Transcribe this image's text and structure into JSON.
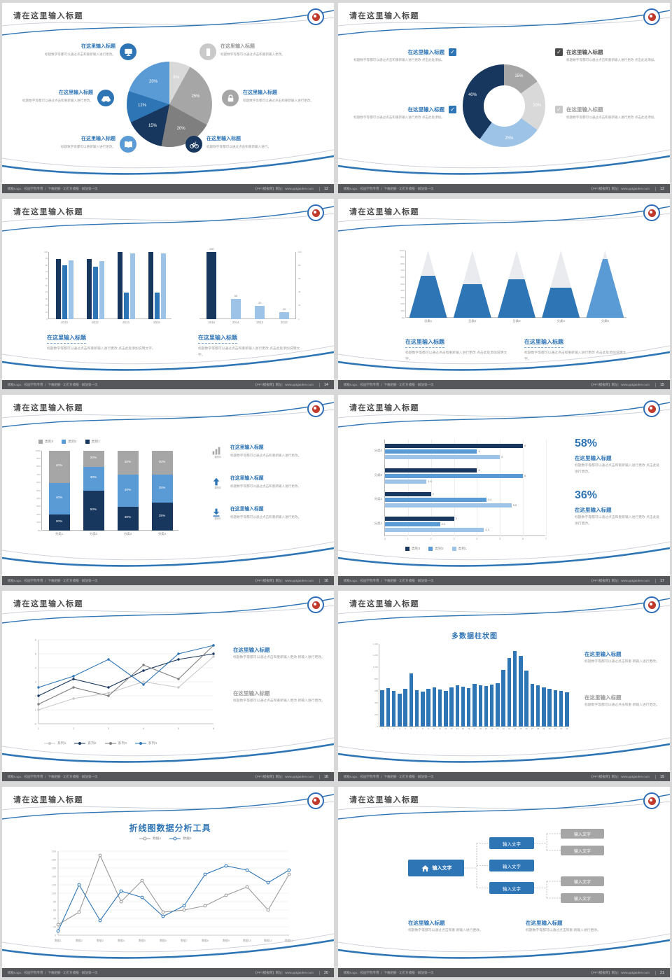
{
  "colors": {
    "dark": "#17375e",
    "blue": "#2e75b6",
    "mid": "#5b9bd5",
    "light": "#9dc3e6",
    "pale": "#bdd7ee",
    "gray": "#a6a6a6",
    "lightgray": "#d9d9d9",
    "midgray": "#7f7f7f",
    "silver": "#c9c9c9",
    "heading": "#2e74b5",
    "graytext": "#9a9a9a",
    "darktext": "#4d4d4d"
  },
  "slide": {
    "title": "请在这里输入标题",
    "footer_left": "模板Logo：校园学院专用 丨 下载相册 · 幻灯片模板 · 解放第一页",
    "footer_right": "【PPT模板网】网址：www.pptgarden.com"
  },
  "slides": [
    {
      "page": "12",
      "type": "pie-icons",
      "chart": {
        "type": "pie",
        "values": [
          8,
          25,
          20,
          15,
          12,
          20
        ],
        "labels": [
          "8%",
          "25%",
          "20%",
          "15%",
          "12%",
          "20%"
        ],
        "colors": [
          "lightgray",
          "gray",
          "midgray",
          "dark",
          "blue",
          "mid"
        ]
      },
      "left_items": [
        {
          "icon": "monitor",
          "circle": "blue",
          "heading": "在这里输入标题",
          "hcolor": "heading",
          "body": "标题数字等都可以通过点击和重新输入进行更改。"
        },
        {
          "icon": "car",
          "circle": "blue",
          "heading": "在这里输入标题",
          "hcolor": "heading",
          "body": "标题数字等都可以通过点击和重新输入进行更改。"
        },
        {
          "icon": "book",
          "circle": "mid",
          "heading": "在这里输入标题",
          "hcolor": "heading",
          "body": "标题数字等都可以重新输入进行更改。"
        }
      ],
      "right_items": [
        {
          "icon": "phone",
          "circle": "silver",
          "heading": "在这里输入标题",
          "hcolor": "graytext",
          "body": "标题数字等都可以通过点击和重新输入更改。"
        },
        {
          "icon": "lock",
          "circle": "gray",
          "heading": "在这里输入标题",
          "hcolor": "heading",
          "body": "标题数字等都可以通过点击和重新输入进行更改。"
        },
        {
          "icon": "bicycle",
          "circle": "dark",
          "heading": "在这里输入标题",
          "hcolor": "heading",
          "body": "标题数字等都可以通过点击和重新输入进行。"
        }
      ]
    },
    {
      "page": "13",
      "type": "donut-checks",
      "chart": {
        "type": "pie",
        "values": [
          15,
          20,
          25,
          40
        ],
        "labels": [
          "15%",
          "20%",
          "25%",
          "40%"
        ],
        "colors": [
          "gray",
          "lightgray",
          "light",
          "dark"
        ]
      },
      "left_items": [
        {
          "check": "blue",
          "heading": "在这里输入标题",
          "hcolor": "heading",
          "body": "标题数字等都可以通过点击和重新输入进行更改 点击此处添加。"
        },
        {
          "check": "blue",
          "heading": "在这里输入标题",
          "hcolor": "heading",
          "body": "标题数字等都可以通过点击和重新输入进行更改 点击此处添加。"
        }
      ],
      "right_items": [
        {
          "check": "darktext",
          "heading": "在这里输入标题",
          "hcolor": "darktext",
          "body": "标题数字等都可以通过点击和重新输入进行更改 点击此处添加。"
        },
        {
          "check": "silver",
          "heading": "在这里输入标题",
          "hcolor": "graytext",
          "body": "标题数字等都可以通过点击和重新输入进行更改 点击此处添加。"
        }
      ]
    },
    {
      "page": "14",
      "type": "two-bars",
      "left_chart": {
        "type": "bar",
        "categories": [
          "2010",
          "2012",
          "2014",
          "2016"
        ],
        "ymax": 100,
        "yticks": [
          "0",
          "10",
          "20",
          "30",
          "40",
          "50",
          "60",
          "70",
          "80",
          "90",
          "100"
        ],
        "series": [
          {
            "color": "dark",
            "values": [
              90,
              90,
              100,
              100
            ]
          },
          {
            "color": "blue",
            "values": [
              80,
              78,
              40,
              40
            ]
          },
          {
            "color": "light",
            "values": [
              88,
              86,
              98,
              98
            ]
          }
        ]
      },
      "right_chart": {
        "type": "bar",
        "categories": [
          "2016",
          "2014",
          "2012",
          "2010"
        ],
        "ymax": 100,
        "yticks": [
          "0",
          "20",
          "40",
          "60",
          "80",
          "100"
        ],
        "values": [
          100,
          30,
          20,
          10
        ],
        "bar_colors": [
          "dark",
          "light",
          "light",
          "light"
        ],
        "labels": [
          "100",
          "30",
          "20",
          "10"
        ]
      },
      "texts": [
        {
          "heading": "在这里输入标题",
          "body": "标题数字等都可以通过点击和重新输入进行更改 点击此处添加说明文字。"
        },
        {
          "heading": "在这里输入标题",
          "body": "标题数字等都可以通过点击和重新输入进行更改 点击此处添加说明文字。"
        }
      ]
    },
    {
      "page": "15",
      "type": "pyramids",
      "chart": {
        "type": "bar",
        "categories": [
          "分类1",
          "分类2",
          "分类3",
          "分类4",
          "分类5"
        ],
        "fill_pct": [
          62,
          50,
          57,
          45,
          88
        ],
        "colors": [
          "blue",
          "blue",
          "blue",
          "blue",
          "mid"
        ],
        "yticks": [
          "0%",
          "10%",
          "20%",
          "30%",
          "40%",
          "50%",
          "60%",
          "70%",
          "80%",
          "90%",
          "100%"
        ]
      },
      "texts": [
        {
          "heading": "在这里输入标题",
          "body": "标题数字等都可以通过点击和重新输入进行更改 点击此处添加说明文字。"
        },
        {
          "heading": "在这里输入标题",
          "body": "标题数字等都可以通过点击和重新输入进行更改 点击此处添加说明文字。"
        }
      ]
    },
    {
      "page": "16",
      "type": "stacked",
      "legend": [
        {
          "label": "类别3",
          "color": "gray"
        },
        {
          "label": "类别2",
          "color": "mid"
        },
        {
          "label": "类别1",
          "color": "dark"
        }
      ],
      "chart": {
        "type": "bar",
        "categories": [
          "分类1",
          "分类2",
          "分类3",
          "分类4"
        ],
        "yticks": [
          "0%",
          "10%",
          "20%",
          "30%",
          "40%",
          "50%",
          "60%",
          "70%",
          "80%",
          "90%",
          "100%"
        ],
        "layers": [
          {
            "name": "类别1",
            "color": "dark",
            "values": [
              20,
              50,
              30,
              35
            ]
          },
          {
            "name": "类别2",
            "color": "mid",
            "values": [
              40,
              30,
              40,
              35
            ]
          },
          {
            "name": "类别3",
            "color": "gray",
            "values": [
              40,
              20,
              30,
              30
            ]
          }
        ]
      },
      "right_items": [
        {
          "icon": "bar-chart",
          "iconColor": "gray",
          "tag": "类别3",
          "heading": "在这里输入标题",
          "body": "标题数字等都可以通过点击和重新输入进行更改。"
        },
        {
          "icon": "up-arrow",
          "iconColor": "blue",
          "tag": "类别2",
          "heading": "在这里输入标题",
          "body": "标题数字等都可以通过点击和重新输入进行更改。"
        },
        {
          "icon": "download",
          "iconColor": "blue",
          "tag": "类别1",
          "heading": "在这里输入标题",
          "body": "标题数字等都可以通过点击和重新输入进行更改。"
        }
      ]
    },
    {
      "page": "17",
      "type": "hbars",
      "chart": {
        "type": "bar",
        "xmax": 7,
        "xticks": [
          "0",
          "1",
          "2",
          "3",
          "4",
          "5",
          "6",
          "7"
        ],
        "series_colors": [
          "dark",
          "mid",
          "light"
        ],
        "groups": [
          {
            "label": "分类4",
            "values": [
              6,
              4,
              5
            ]
          },
          {
            "label": "分类3",
            "values": [
              4,
              6,
              1.8
            ]
          },
          {
            "label": "分类2",
            "values": [
              2,
              4.4,
              5.5
            ]
          },
          {
            "label": "分类1",
            "values": [
              3,
              2.4,
              4.3
            ]
          }
        ]
      },
      "legend": [
        {
          "label": "类别3",
          "color": "dark"
        },
        {
          "label": "类别2",
          "color": "mid"
        },
        {
          "label": "类别1",
          "color": "light"
        }
      ],
      "stats": [
        {
          "pct": "58%",
          "heading": "在这里输入标题",
          "body": "标题数字等都可以通过点击和重新输入进行更改 点击此处进行更改。"
        },
        {
          "pct": "36%",
          "heading": "在这里输入标题",
          "body": "标题数字等都可以通过点击和重新输入进行更改 点击此处进行更改。"
        }
      ]
    },
    {
      "page": "18",
      "type": "multi-line",
      "chart": {
        "type": "line",
        "x": [
          "1",
          "2",
          "3",
          "4",
          "5",
          "6"
        ],
        "ymax": 6,
        "series": [
          {
            "name": "系列1",
            "color": "silver",
            "values": [
              1.0,
              1.8,
              2.2,
              3.0,
              2.6,
              4.8
            ]
          },
          {
            "name": "系列2",
            "color": "dark",
            "values": [
              2.0,
              3.2,
              2.6,
              3.8,
              4.6,
              5.0
            ]
          },
          {
            "name": "系列3",
            "color": "midgray",
            "values": [
              1.4,
              2.6,
              2.0,
              4.2,
              3.2,
              5.6
            ]
          },
          {
            "name": "系列4",
            "color": "blue",
            "values": [
              2.6,
              3.4,
              4.6,
              2.8,
              5.0,
              5.6
            ]
          }
        ]
      },
      "texts": [
        {
          "heading": "在这里输入标题",
          "hcolor": "heading",
          "body": "标题数字等都可以通过点击和重新输入更改 新输入进行更改。"
        },
        {
          "heading": "在这里输入标题",
          "hcolor": "graytext",
          "body": "标题数字等都可以通过点击和重新输入更改 新输入进行更改。"
        }
      ]
    },
    {
      "page": "19",
      "type": "columns",
      "title": "多数据柱状图",
      "chart": {
        "type": "bar",
        "ymax": 1400,
        "yticks": [
          "0",
          "200",
          "400",
          "600",
          "800",
          "1,000",
          "1,200",
          "1,400"
        ],
        "xlabels": [
          "1",
          "2",
          "3",
          "4",
          "5",
          "6",
          "7",
          "8",
          "9",
          "10",
          "11",
          "12",
          "13",
          "14",
          "15",
          "16",
          "17",
          "18",
          "19",
          "20",
          "21",
          "22",
          "23",
          "24",
          "25",
          "26",
          "27",
          "28",
          "29",
          "30",
          "31",
          "32",
          "33"
        ],
        "values": [
          620,
          650,
          600,
          560,
          640,
          900,
          620,
          590,
          640,
          660,
          630,
          600,
          660,
          700,
          680,
          650,
          720,
          700,
          690,
          710,
          730,
          960,
          1160,
          1280,
          1200,
          950,
          720,
          700,
          670,
          640,
          620,
          600,
          580
        ]
      },
      "texts": [
        {
          "heading": "在这里输入标题",
          "hcolor": "heading",
          "body": "标题数字等都可以通过点击和重 新输入进行更改。"
        },
        {
          "heading": "在这里输入标题",
          "hcolor": "graytext",
          "body": "标题数字等都可以通过点击和重 新输入进行更改。"
        }
      ]
    },
    {
      "page": "20",
      "type": "two-line",
      "title": "折线图数据分析工具",
      "legend": [
        {
          "label": "数据1",
          "color": "graytext"
        },
        {
          "label": "数据2",
          "color": "blue"
        }
      ],
      "chart": {
        "type": "line",
        "ymax": 200,
        "yticks": [
          "0",
          "20",
          "40",
          "60",
          "80",
          "100",
          "120",
          "140",
          "160",
          "180",
          "200"
        ],
        "x": [
          "数据1",
          "数据2",
          "数据3",
          "数据4",
          "数据5",
          "数据6",
          "数据7",
          "数据8",
          "数据9",
          "数据10",
          "数据11",
          "数据12"
        ],
        "series": [
          {
            "name": "数据1",
            "color": "graytext",
            "values": [
              25,
              55,
              190,
              80,
              130,
              55,
              60,
              70,
              95,
              115,
              60,
              145
            ]
          },
          {
            "name": "数据2",
            "color": "blue",
            "values": [
              10,
              120,
              35,
              105,
              90,
              45,
              70,
              145,
              165,
              155,
              125,
              155
            ]
          }
        ]
      },
      "texts": []
    },
    {
      "page": "21",
      "type": "diagram",
      "home_label": "输入文字",
      "blue_boxes": [
        "输入文字",
        "输入文字",
        "输入文字"
      ],
      "gray_boxes": [
        "输入文字",
        "输入文字",
        "输入文字",
        "输入文字"
      ],
      "texts": [
        {
          "heading": "在这里输入标题",
          "body": "标题数字等都可以通过点击和重 新输入进行更改。"
        },
        {
          "heading": "在这里输入标题",
          "body": "标题数字等都可以通过点击和重 新输入进行更改。"
        }
      ]
    }
  ]
}
